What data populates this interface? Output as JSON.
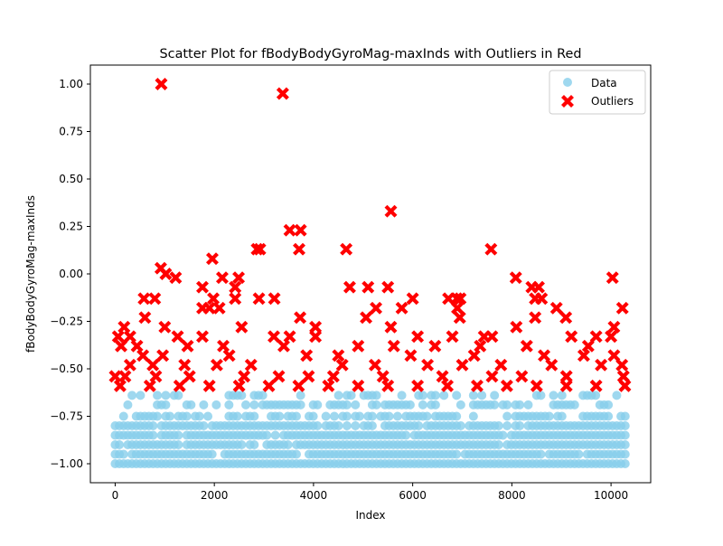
{
  "chart_data": {
    "type": "scatter",
    "title": "Scatter Plot for fBodyBodyGyroMag-maxInds with Outliers in Red",
    "xlabel": "Index",
    "ylabel": "fBodyBodyGyroMag-maxInds",
    "xlim": [
      -500,
      10800
    ],
    "ylim": [
      -1.1,
      1.1
    ],
    "x_ticks": [
      0,
      2000,
      4000,
      6000,
      8000,
      10000
    ],
    "x_tick_labels": [
      "0",
      "2000",
      "4000",
      "6000",
      "8000",
      "10000"
    ],
    "y_ticks": [
      -1.0,
      -0.75,
      -0.5,
      -0.25,
      0.0,
      0.25,
      0.5,
      0.75,
      1.0
    ],
    "y_tick_labels": [
      "−1.00",
      "−0.75",
      "−0.50",
      "−0.25",
      "0.00",
      "0.25",
      "0.50",
      "0.75",
      "1.00"
    ],
    "grid": false,
    "legend_position": "top-right",
    "colors": {
      "data": "#87ceeb",
      "outliers": "#ff0000"
    },
    "x_max_index": 10299,
    "series": [
      {
        "name": "Data",
        "marker": "circle",
        "color": "#87ceeb",
        "levels": [
          -1.0,
          -0.95,
          -0.9,
          -0.85,
          -0.8,
          -0.75,
          -0.69,
          -0.64
        ],
        "level_fill": [
          1.0,
          0.95,
          0.95,
          0.95,
          0.85,
          0.65,
          0.55,
          0.35
        ],
        "note_gaps_x": [
          [
            7050,
            7200
          ],
          [
            7700,
            7800
          ]
        ]
      },
      {
        "name": "Outliers",
        "marker": "x",
        "color": "#ff0000",
        "points": [
          [
            930,
            1.0
          ],
          [
            3380,
            0.95
          ],
          [
            5560,
            0.33
          ],
          [
            3520,
            0.23
          ],
          [
            3740,
            0.23
          ],
          [
            3710,
            0.13
          ],
          [
            4660,
            0.13
          ],
          [
            7580,
            0.13
          ],
          [
            2860,
            0.13
          ],
          [
            2920,
            0.13
          ],
          [
            1960,
            0.08
          ],
          [
            920,
            0.03
          ],
          [
            1020,
            0.0
          ],
          [
            1220,
            -0.02
          ],
          [
            2160,
            -0.02
          ],
          [
            2490,
            -0.02
          ],
          [
            8080,
            -0.02
          ],
          [
            10030,
            -0.02
          ],
          [
            1760,
            -0.07
          ],
          [
            2420,
            -0.07
          ],
          [
            4730,
            -0.07
          ],
          [
            5100,
            -0.07
          ],
          [
            5500,
            -0.07
          ],
          [
            8400,
            -0.07
          ],
          [
            8540,
            -0.07
          ],
          [
            580,
            -0.13
          ],
          [
            800,
            -0.13
          ],
          [
            1980,
            -0.13
          ],
          [
            2420,
            -0.13
          ],
          [
            2900,
            -0.13
          ],
          [
            3210,
            -0.13
          ],
          [
            6000,
            -0.13
          ],
          [
            6720,
            -0.13
          ],
          [
            6890,
            -0.13
          ],
          [
            6960,
            -0.13
          ],
          [
            8470,
            -0.13
          ],
          [
            8600,
            -0.13
          ],
          [
            1760,
            -0.18
          ],
          [
            1900,
            -0.18
          ],
          [
            2100,
            -0.18
          ],
          [
            5260,
            -0.18
          ],
          [
            5780,
            -0.18
          ],
          [
            6900,
            -0.18
          ],
          [
            8900,
            -0.18
          ],
          [
            10230,
            -0.18
          ],
          [
            600,
            -0.23
          ],
          [
            3730,
            -0.23
          ],
          [
            5060,
            -0.23
          ],
          [
            6950,
            -0.23
          ],
          [
            9090,
            -0.23
          ],
          [
            8470,
            -0.23
          ],
          [
            180,
            -0.28
          ],
          [
            1000,
            -0.28
          ],
          [
            2550,
            -0.28
          ],
          [
            4040,
            -0.28
          ],
          [
            5560,
            -0.28
          ],
          [
            8090,
            -0.28
          ],
          [
            10060,
            -0.28
          ],
          [
            60,
            -0.33
          ],
          [
            300,
            -0.33
          ],
          [
            1260,
            -0.33
          ],
          [
            1760,
            -0.33
          ],
          [
            3200,
            -0.33
          ],
          [
            3520,
            -0.33
          ],
          [
            4040,
            -0.33
          ],
          [
            6100,
            -0.33
          ],
          [
            6800,
            -0.33
          ],
          [
            7440,
            -0.33
          ],
          [
            7600,
            -0.33
          ],
          [
            9200,
            -0.33
          ],
          [
            9700,
            -0.33
          ],
          [
            10000,
            -0.33
          ],
          [
            120,
            -0.38
          ],
          [
            440,
            -0.38
          ],
          [
            1460,
            -0.38
          ],
          [
            2180,
            -0.38
          ],
          [
            3400,
            -0.38
          ],
          [
            4900,
            -0.38
          ],
          [
            5620,
            -0.38
          ],
          [
            6450,
            -0.38
          ],
          [
            7360,
            -0.38
          ],
          [
            8300,
            -0.38
          ],
          [
            9540,
            -0.38
          ],
          [
            560,
            -0.43
          ],
          [
            960,
            -0.43
          ],
          [
            2300,
            -0.43
          ],
          [
            3860,
            -0.43
          ],
          [
            4500,
            -0.43
          ],
          [
            5960,
            -0.43
          ],
          [
            7240,
            -0.43
          ],
          [
            8650,
            -0.43
          ],
          [
            9450,
            -0.43
          ],
          [
            10060,
            -0.43
          ],
          [
            300,
            -0.48
          ],
          [
            760,
            -0.48
          ],
          [
            1400,
            -0.48
          ],
          [
            2050,
            -0.48
          ],
          [
            2740,
            -0.48
          ],
          [
            4580,
            -0.48
          ],
          [
            5240,
            -0.48
          ],
          [
            6300,
            -0.48
          ],
          [
            7000,
            -0.48
          ],
          [
            7780,
            -0.48
          ],
          [
            8800,
            -0.48
          ],
          [
            9800,
            -0.48
          ],
          [
            10220,
            -0.48
          ],
          [
            0,
            -0.54
          ],
          [
            200,
            -0.54
          ],
          [
            820,
            -0.54
          ],
          [
            1500,
            -0.54
          ],
          [
            2600,
            -0.54
          ],
          [
            3300,
            -0.54
          ],
          [
            3900,
            -0.54
          ],
          [
            4400,
            -0.54
          ],
          [
            5400,
            -0.54
          ],
          [
            6600,
            -0.54
          ],
          [
            7600,
            -0.54
          ],
          [
            8200,
            -0.54
          ],
          [
            9100,
            -0.54
          ],
          [
            10250,
            -0.54
          ],
          [
            100,
            -0.59
          ],
          [
            700,
            -0.59
          ],
          [
            1300,
            -0.59
          ],
          [
            1900,
            -0.59
          ],
          [
            2500,
            -0.59
          ],
          [
            3100,
            -0.59
          ],
          [
            3700,
            -0.59
          ],
          [
            4300,
            -0.59
          ],
          [
            4900,
            -0.59
          ],
          [
            5500,
            -0.59
          ],
          [
            6100,
            -0.59
          ],
          [
            6700,
            -0.59
          ],
          [
            7300,
            -0.59
          ],
          [
            7900,
            -0.59
          ],
          [
            8500,
            -0.59
          ],
          [
            9100,
            -0.59
          ],
          [
            9700,
            -0.59
          ],
          [
            10280,
            -0.59
          ]
        ]
      }
    ]
  }
}
